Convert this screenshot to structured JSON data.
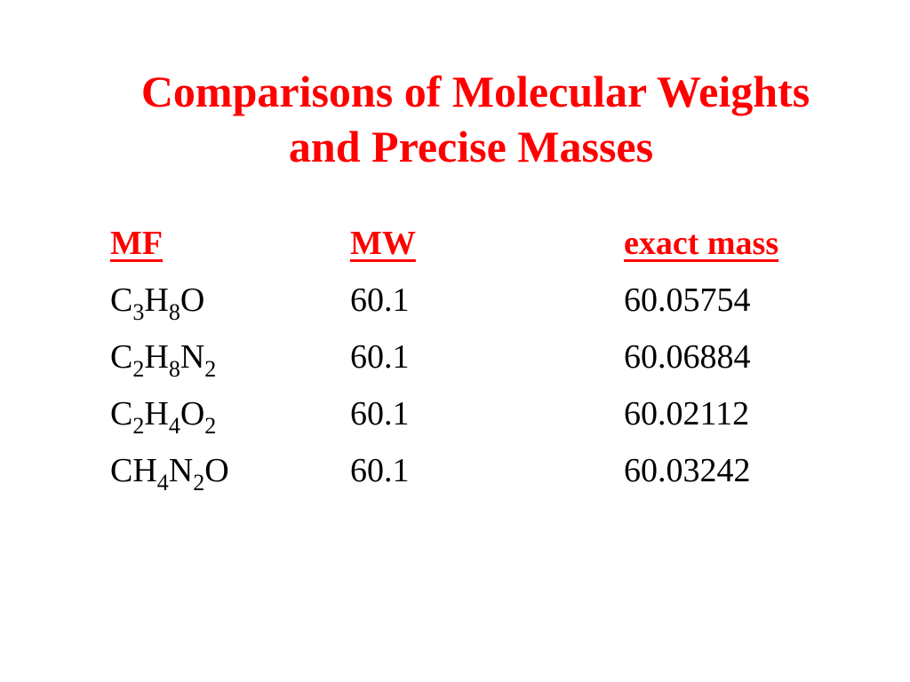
{
  "slide": {
    "title_line_1": "Comparisons of Molecular Weights",
    "title_line_2": "and Precise Masses"
  },
  "colors": {
    "accent": "#ff0000",
    "text": "#000000",
    "background": "#ffffff"
  },
  "table": {
    "headers": {
      "mf": "MF",
      "mw": "MW",
      "exact_mass": "exact mass"
    },
    "rows": [
      {
        "mf": [
          {
            "t": "C"
          },
          {
            "sub": "3"
          },
          {
            "t": "H"
          },
          {
            "sub": "8"
          },
          {
            "t": "O"
          }
        ],
        "mw": "60.1",
        "exact_mass": "60.05754"
      },
      {
        "mf": [
          {
            "t": "C"
          },
          {
            "sub": "2"
          },
          {
            "t": "H"
          },
          {
            "sub": "8"
          },
          {
            "t": "N"
          },
          {
            "sub": "2"
          }
        ],
        "mw": "60.1",
        "exact_mass": "60.06884"
      },
      {
        "mf": [
          {
            "t": "C"
          },
          {
            "sub": "2"
          },
          {
            "t": "H"
          },
          {
            "sub": "4"
          },
          {
            "t": "O"
          },
          {
            "sub": "2"
          }
        ],
        "mw": "60.1",
        "exact_mass": "60.02112"
      },
      {
        "mf": [
          {
            "t": "CH"
          },
          {
            "sub": "4"
          },
          {
            "t": "N"
          },
          {
            "sub": "2"
          },
          {
            "t": "O"
          }
        ],
        "mw": "60.1",
        "exact_mass": "60.03242"
      }
    ]
  }
}
